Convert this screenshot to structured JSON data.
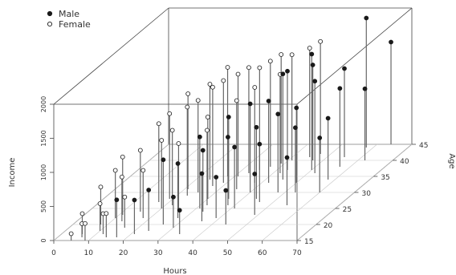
{
  "chart_data": {
    "type": "scatter",
    "variant": "3d-scatter-with-drop-lines",
    "title": "",
    "xlabel": "Hours",
    "ylabel": "Age",
    "zlabel": "Income",
    "xlim": [
      0,
      70
    ],
    "ylim": [
      15,
      45
    ],
    "zlim": [
      0,
      2000
    ],
    "x_ticks": [
      "0",
      "10",
      "20",
      "30",
      "40",
      "50",
      "60",
      "70"
    ],
    "y_ticks": [
      "15",
      "20",
      "25",
      "30",
      "35",
      "40",
      "45"
    ],
    "z_ticks": [
      "0",
      "500",
      "1000",
      "1500",
      "2000"
    ],
    "grid": true,
    "legend": {
      "position": "top-left",
      "entries": [
        {
          "name": "Male",
          "marker": "filled-circle",
          "color": "#1a1a1a"
        },
        {
          "name": "Female",
          "marker": "open-circle",
          "color": "#ffffff"
        }
      ]
    },
    "series": [
      {
        "name": "Male",
        "points": [
          {
            "x": 58,
            "y": 44,
            "z": 1900
          },
          {
            "x": 64,
            "y": 45,
            "z": 1500
          },
          {
            "x": 50,
            "y": 37,
            "z": 1700
          },
          {
            "x": 45,
            "y": 34,
            "z": 1550
          },
          {
            "x": 40,
            "y": 30,
            "z": 1300
          },
          {
            "x": 47,
            "y": 40,
            "z": 1400
          },
          {
            "x": 36,
            "y": 28,
            "z": 1200
          },
          {
            "x": 55,
            "y": 41,
            "z": 1300
          },
          {
            "x": 52,
            "y": 36,
            "z": 1350
          },
          {
            "x": 42,
            "y": 33,
            "z": 1200
          },
          {
            "x": 31,
            "y": 25,
            "z": 1050
          },
          {
            "x": 48,
            "y": 30,
            "z": 1150
          },
          {
            "x": 38,
            "y": 26,
            "z": 1000
          },
          {
            "x": 57,
            "y": 38,
            "z": 1150
          },
          {
            "x": 44,
            "y": 28,
            "z": 1050
          },
          {
            "x": 50,
            "y": 33,
            "z": 1100
          },
          {
            "x": 33,
            "y": 24,
            "z": 900
          },
          {
            "x": 62,
            "y": 40,
            "z": 1050
          },
          {
            "x": 41,
            "y": 25,
            "z": 900
          },
          {
            "x": 53,
            "y": 30,
            "z": 950
          },
          {
            "x": 28,
            "y": 22,
            "z": 800
          },
          {
            "x": 58,
            "y": 34,
            "z": 900
          },
          {
            "x": 36,
            "y": 21,
            "z": 700
          },
          {
            "x": 46,
            "y": 27,
            "z": 850
          },
          {
            "x": 24,
            "y": 18,
            "z": 600
          },
          {
            "x": 17,
            "y": 16,
            "z": 550
          },
          {
            "x": 21,
            "y": 17,
            "z": 500
          },
          {
            "x": 39,
            "y": 22,
            "z": 600
          },
          {
            "x": 30,
            "y": 19,
            "z": 450
          },
          {
            "x": 55,
            "y": 26,
            "z": 700
          },
          {
            "x": 44,
            "y": 20,
            "z": 500
          },
          {
            "x": 60,
            "y": 30,
            "z": 800
          },
          {
            "x": 34,
            "y": 17,
            "z": 350
          },
          {
            "x": 49,
            "y": 23,
            "z": 600
          },
          {
            "x": 26,
            "y": 20,
            "z": 950
          },
          {
            "x": 43,
            "y": 37,
            "z": 1450
          }
        ]
      },
      {
        "name": "Female",
        "points": [
          {
            "x": 5,
            "y": 15,
            "z": 100
          },
          {
            "x": 7,
            "y": 16,
            "z": 200
          },
          {
            "x": 9,
            "y": 15,
            "z": 250
          },
          {
            "x": 12,
            "y": 17,
            "z": 300
          },
          {
            "x": 10,
            "y": 18,
            "z": 400
          },
          {
            "x": 14,
            "y": 16,
            "z": 350
          },
          {
            "x": 16,
            "y": 19,
            "z": 450
          },
          {
            "x": 8,
            "y": 20,
            "z": 550
          },
          {
            "x": 13,
            "y": 21,
            "z": 650
          },
          {
            "x": 18,
            "y": 22,
            "z": 700
          },
          {
            "x": 11,
            "y": 23,
            "z": 850
          },
          {
            "x": 15,
            "y": 24,
            "z": 900
          },
          {
            "x": 20,
            "y": 25,
            "z": 1000
          },
          {
            "x": 22,
            "y": 26,
            "z": 1100
          },
          {
            "x": 17,
            "y": 27,
            "z": 1150
          },
          {
            "x": 19,
            "y": 28,
            "z": 1250
          },
          {
            "x": 23,
            "y": 29,
            "z": 1300
          },
          {
            "x": 25,
            "y": 30,
            "z": 1350
          },
          {
            "x": 21,
            "y": 31,
            "z": 1400
          },
          {
            "x": 27,
            "y": 32,
            "z": 1450
          },
          {
            "x": 29,
            "y": 33,
            "z": 1500
          },
          {
            "x": 24,
            "y": 34,
            "z": 1400
          },
          {
            "x": 31,
            "y": 35,
            "z": 1500
          },
          {
            "x": 33,
            "y": 36,
            "z": 1550
          },
          {
            "x": 35,
            "y": 37,
            "z": 1500
          },
          {
            "x": 37,
            "y": 38,
            "z": 1550
          },
          {
            "x": 39,
            "y": 39,
            "z": 1600
          },
          {
            "x": 41,
            "y": 40,
            "z": 1550
          },
          {
            "x": 45,
            "y": 41,
            "z": 1600
          },
          {
            "x": 47,
            "y": 42,
            "z": 1650
          },
          {
            "x": 30,
            "y": 28,
            "z": 1200
          },
          {
            "x": 26,
            "y": 24,
            "z": 1000
          },
          {
            "x": 35,
            "y": 31,
            "z": 1300
          },
          {
            "x": 28,
            "y": 35,
            "z": 1600
          },
          {
            "x": 32,
            "y": 26,
            "z": 1100
          },
          {
            "x": 38,
            "y": 33,
            "z": 1400
          },
          {
            "x": 42,
            "y": 36,
            "z": 1450
          },
          {
            "x": 6,
            "y": 17,
            "z": 300
          },
          {
            "x": 10,
            "y": 22,
            "z": 700
          }
        ]
      }
    ]
  }
}
